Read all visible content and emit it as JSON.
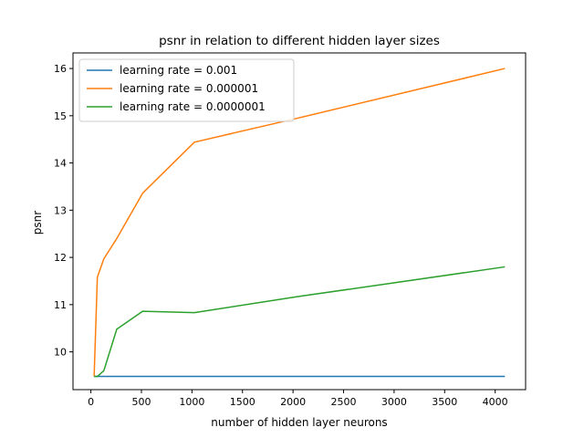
{
  "chart_data": {
    "type": "line",
    "title": "psnr in relation to different hidden layer sizes",
    "xlabel": "number of hidden layer neurons",
    "ylabel": "psnr",
    "xlim": [
      -177,
      4301
    ],
    "ylim": [
      9.2,
      16.33
    ],
    "x_ticks": [
      0,
      500,
      1000,
      1500,
      2000,
      2500,
      3000,
      3500,
      4000
    ],
    "y_ticks": [
      10,
      11,
      12,
      13,
      14,
      15,
      16
    ],
    "grid": false,
    "legend_position": "top-left",
    "series": [
      {
        "name": "learning rate = 0.001",
        "color": "#1f77b4",
        "x": [
          32,
          64,
          128,
          256,
          512,
          1024,
          2048,
          4096
        ],
        "y": [
          9.48,
          9.48,
          9.48,
          9.48,
          9.48,
          9.48,
          9.48,
          9.48
        ]
      },
      {
        "name": "learning rate = 0.000001",
        "color": "#ff7f0e",
        "x": [
          32,
          64,
          128,
          256,
          512,
          1024,
          2048,
          4096
        ],
        "y": [
          9.48,
          11.58,
          11.97,
          12.4,
          13.36,
          14.44,
          14.95,
          16.0
        ]
      },
      {
        "name": "learning rate = 0.0000001",
        "color": "#2ca02c",
        "x": [
          32,
          64,
          128,
          256,
          512,
          1024,
          2048,
          4096
        ],
        "y": [
          9.48,
          9.48,
          9.6,
          10.48,
          10.86,
          10.83,
          11.17,
          11.8
        ]
      }
    ]
  }
}
